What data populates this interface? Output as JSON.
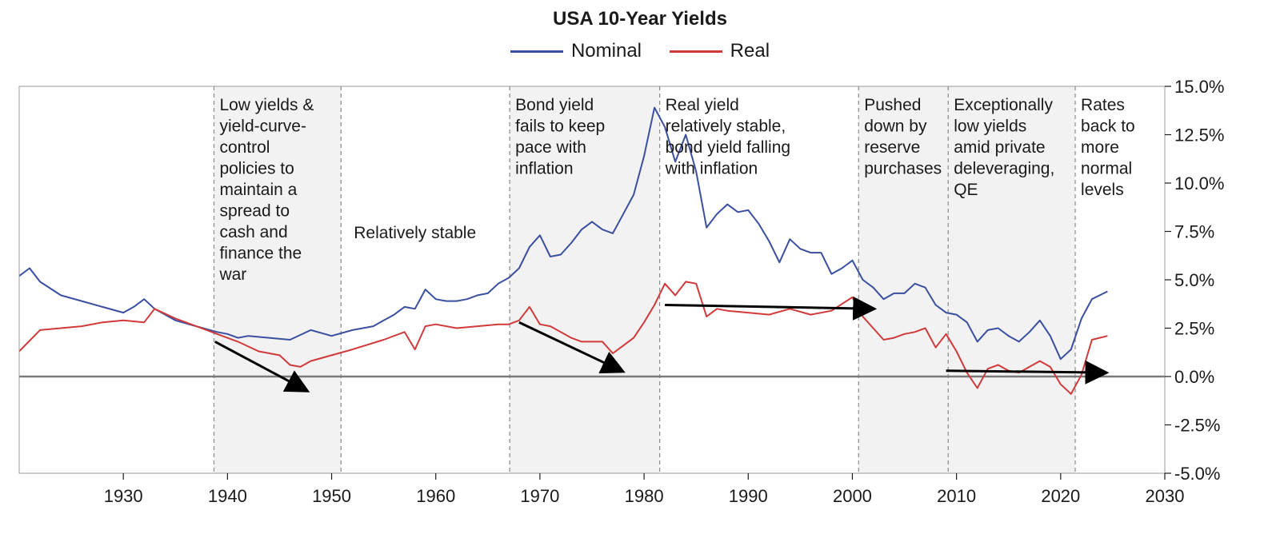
{
  "chart_data": {
    "type": "line",
    "title": "USA 10-Year Yields",
    "xlabel": "",
    "ylabel": "",
    "xlim": [
      1920,
      2030
    ],
    "ylim": [
      -5.0,
      15.0
    ],
    "x_ticks": [
      "1930",
      "1940",
      "1950",
      "1960",
      "1970",
      "1980",
      "1990",
      "2000",
      "2010",
      "2020",
      "2030"
    ],
    "y_ticks": [
      "15.0%",
      "12.5%",
      "10.0%",
      "7.5%",
      "5.0%",
      "2.5%",
      "0.0%",
      "-2.5%",
      "-5.0%"
    ],
    "y_axis_position": "right",
    "legend_position": "top-center",
    "grid": false,
    "zero_line": true,
    "series": [
      {
        "name": "Nominal",
        "color": "#3a4fa0",
        "x": [
          1920,
          1921,
          1922,
          1924,
          1926,
          1928,
          1930,
          1931,
          1932,
          1933,
          1935,
          1937,
          1939,
          1940,
          1941,
          1942,
          1944,
          1946,
          1948,
          1950,
          1952,
          1954,
          1955,
          1956,
          1957,
          1958,
          1959,
          1960,
          1961,
          1962,
          1963,
          1964,
          1965,
          1966,
          1967,
          1968,
          1969,
          1970,
          1971,
          1972,
          1973,
          1974,
          1975,
          1976,
          1977,
          1978,
          1979,
          1980,
          1981,
          1982,
          1983,
          1984,
          1985,
          1986,
          1987,
          1988,
          1989,
          1990,
          1991,
          1992,
          1993,
          1994,
          1995,
          1996,
          1997,
          1998,
          1999,
          2000,
          2001,
          2002,
          2003,
          2004,
          2005,
          2006,
          2007,
          2008,
          2009,
          2010,
          2011,
          2012,
          2013,
          2014,
          2015,
          2016,
          2017,
          2018,
          2019,
          2020,
          2021,
          2022,
          2023,
          2024.5
        ],
        "values": [
          5.2,
          5.6,
          4.9,
          4.2,
          3.9,
          3.6,
          3.3,
          3.6,
          4.0,
          3.5,
          2.9,
          2.6,
          2.3,
          2.2,
          2.0,
          2.1,
          2.0,
          1.9,
          2.4,
          2.1,
          2.4,
          2.6,
          2.9,
          3.2,
          3.6,
          3.5,
          4.5,
          4.0,
          3.9,
          3.9,
          4.0,
          4.2,
          4.3,
          4.8,
          5.1,
          5.6,
          6.7,
          7.3,
          6.2,
          6.3,
          6.9,
          7.6,
          8.0,
          7.6,
          7.4,
          8.4,
          9.4,
          11.4,
          13.9,
          12.9,
          11.1,
          12.5,
          10.6,
          7.7,
          8.4,
          8.9,
          8.5,
          8.6,
          7.9,
          7.0,
          5.9,
          7.1,
          6.6,
          6.4,
          6.4,
          5.3,
          5.6,
          6.0,
          5.0,
          4.6,
          4.0,
          4.3,
          4.3,
          4.8,
          4.6,
          3.7,
          3.3,
          3.2,
          2.8,
          1.8,
          2.4,
          2.5,
          2.1,
          1.8,
          2.3,
          2.9,
          2.1,
          0.9,
          1.4,
          3.0,
          4.0,
          4.4
        ]
      },
      {
        "name": "Real",
        "color": "#d03a3a",
        "x": [
          1920,
          1922,
          1924,
          1926,
          1928,
          1930,
          1932,
          1933,
          1935,
          1937,
          1939,
          1941,
          1943,
          1945,
          1946,
          1947,
          1948,
          1950,
          1952,
          1955,
          1957,
          1958,
          1959,
          1960,
          1962,
          1964,
          1966,
          1967,
          1968,
          1969,
          1970,
          1971,
          1972,
          1973,
          1974,
          1975,
          1976,
          1977,
          1978,
          1979,
          1980,
          1981,
          1982,
          1983,
          1984,
          1985,
          1986,
          1987,
          1988,
          1990,
          1992,
          1994,
          1996,
          1998,
          2000,
          2001,
          2002,
          2003,
          2004,
          2005,
          2006,
          2007,
          2008,
          2009,
          2010,
          2011,
          2012,
          2013,
          2014,
          2015,
          2016,
          2017,
          2018,
          2019,
          2020,
          2021,
          2022,
          2023,
          2024.5
        ],
        "values": [
          1.3,
          2.4,
          2.5,
          2.6,
          2.8,
          2.9,
          2.8,
          3.5,
          3.0,
          2.6,
          2.2,
          1.8,
          1.3,
          1.1,
          0.6,
          0.5,
          0.8,
          1.1,
          1.4,
          1.9,
          2.3,
          1.4,
          2.6,
          2.7,
          2.5,
          2.6,
          2.7,
          2.7,
          2.9,
          3.6,
          2.7,
          2.6,
          2.3,
          2.0,
          1.8,
          1.8,
          1.8,
          1.2,
          1.6,
          2.0,
          2.8,
          3.7,
          4.8,
          4.2,
          4.9,
          4.8,
          3.1,
          3.5,
          3.4,
          3.3,
          3.2,
          3.5,
          3.2,
          3.4,
          4.1,
          3.1,
          2.5,
          1.9,
          2.0,
          2.2,
          2.3,
          2.5,
          1.5,
          2.2,
          1.3,
          0.2,
          -0.6,
          0.4,
          0.6,
          0.3,
          0.2,
          0.5,
          0.8,
          0.5,
          -0.4,
          -0.9,
          0.1,
          1.9,
          2.1
        ]
      }
    ],
    "regions": [
      {
        "x0": 1938.7,
        "x1": 1950.9,
        "shaded": true,
        "label": "Low yields & yield-curve-control policies to maintain a spread to cash and finance the war",
        "lines": [
          "Low yields &",
          "yield-curve-",
          "control",
          "policies to",
          "maintain a",
          "spread to",
          "cash and",
          "finance the",
          "war"
        ]
      },
      {
        "x0": 1950.9,
        "x1": 1967.1,
        "shaded": false,
        "label": "Relatively stable",
        "lines": [
          "Relatively stable"
        ]
      },
      {
        "x0": 1967.1,
        "x1": 1981.5,
        "shaded": true,
        "label": "Bond yield fails to keep pace with inflation",
        "lines": [
          "Bond yield",
          "fails to keep",
          "pace with",
          "inflation"
        ]
      },
      {
        "x0": 1981.5,
        "x1": 2000.6,
        "shaded": false,
        "label": "Real yield relatively stable, bond yield falling with inflation",
        "lines": [
          "Real yield",
          "relatively stable,",
          "bond yield falling",
          "with inflation"
        ]
      },
      {
        "x0": 2000.6,
        "x1": 2009.2,
        "shaded": true,
        "label": "Pushed down by reserve purchases",
        "lines": [
          "Pushed",
          "down by",
          "reserve",
          "purchases"
        ]
      },
      {
        "x0": 2009.2,
        "x1": 2021.4,
        "shaded": true,
        "label": "Exceptionally low yields amid private deleveraging, QE",
        "lines": [
          "Exceptionally",
          "low yields",
          "amid private",
          "deleveraging,",
          "QE"
        ]
      },
      {
        "x0": 2021.4,
        "x1": 2025.5,
        "shaded": false,
        "label": "Rates back to more normal levels",
        "lines": [
          "Rates",
          "back to",
          "more",
          "normal",
          "levels"
        ]
      }
    ],
    "arrows": [
      {
        "x0": 1938.8,
        "y0": 1.8,
        "x1": 1947.5,
        "y1": -0.7
      },
      {
        "x0": 1968.0,
        "y0": 2.8,
        "x1": 1977.8,
        "y1": 0.3
      },
      {
        "x0": 1982.0,
        "y0": 3.7,
        "x1": 2001.9,
        "y1": 3.5
      },
      {
        "x0": 2009.0,
        "y0": 0.3,
        "x1": 2024.2,
        "y1": 0.2
      }
    ]
  }
}
